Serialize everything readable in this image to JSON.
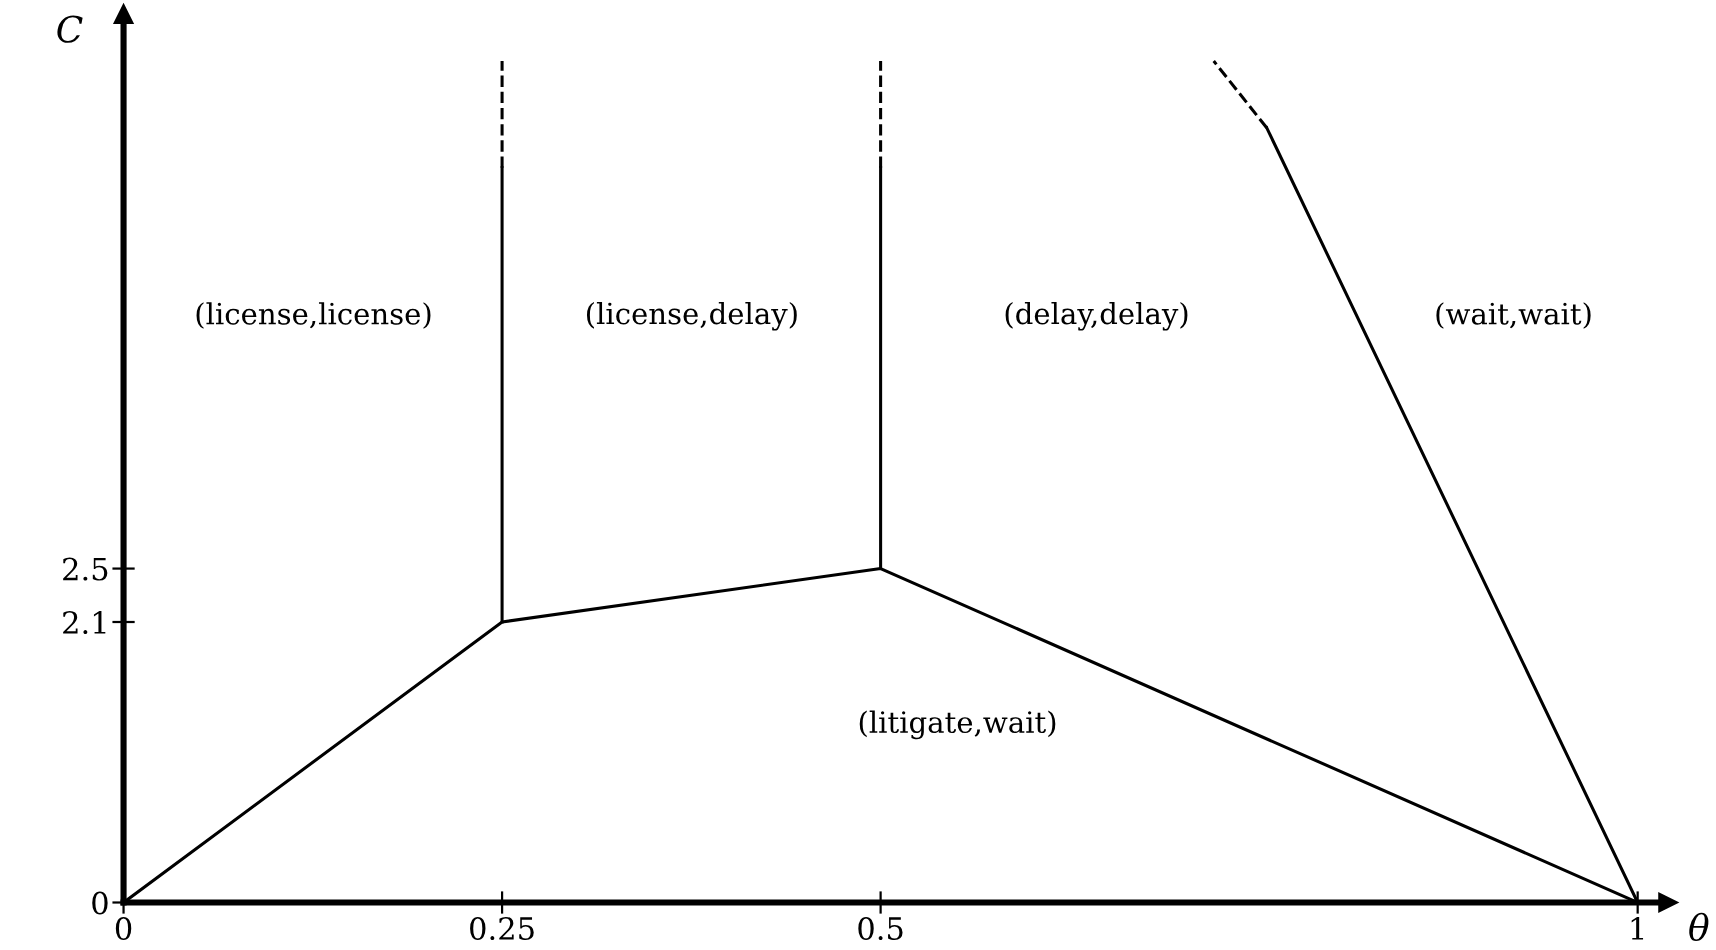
{
  "chart_data": {
    "type": "line",
    "xlabel": "θ",
    "ylabel": "C",
    "series": [
      {
        "color": "#000000",
        "line_style": "solid",
        "x": [
          0,
          0.25,
          0.5,
          1
        ],
        "values": [
          0,
          2.1,
          2.5,
          0
        ]
      },
      {
        "color": "#000000",
        "line_style": "solid",
        "x": [
          0.25,
          0.25
        ],
        "values": [
          2.1,
          5.5
        ]
      },
      {
        "color": "#000000",
        "line_style": "dashed",
        "x": [
          0.25,
          0.25
        ],
        "values": [
          5.5,
          6.3
        ]
      },
      {
        "color": "#000000",
        "line_style": "solid",
        "x": [
          0.5,
          0.5
        ],
        "values": [
          2.5,
          5.5
        ]
      },
      {
        "color": "#000000",
        "line_style": "dashed",
        "x": [
          0.5,
          0.5
        ],
        "values": [
          5.5,
          6.3
        ]
      },
      {
        "color": "#000000",
        "line_style": "solid",
        "x": [
          1,
          0.755
        ],
        "values": [
          0,
          5.8
        ]
      },
      {
        "color": "#000000",
        "line_style": "dashed",
        "x": [
          0.755,
          0.72
        ],
        "values": [
          5.8,
          6.3
        ]
      }
    ],
    "annotations": [
      "(license,license)",
      "(license,delay)",
      "(delay,delay)",
      "(wait,wait)",
      "(litigate,wait)"
    ],
    "xlim": [
      0,
      1.02
    ],
    "ylim": [
      0,
      6.65
    ],
    "xticks": [
      0,
      0.25,
      0.5,
      1
    ],
    "yticks": [
      0,
      2.1,
      2.5
    ],
    "grid": false,
    "legend": false,
    "marker": "none"
  }
}
